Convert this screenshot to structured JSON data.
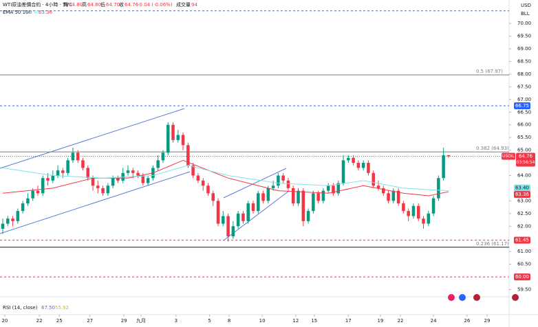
{
  "header": {
    "symbol": "WTI原油差價合約 · 4小時 · TVC",
    "ohlc": [
      {
        "label": "開",
        "value": "64.80"
      },
      {
        "label": "高",
        "value": "64.80"
      },
      {
        "label": "低",
        "value": "64.70"
      },
      {
        "label": "收",
        "value": "64.76"
      }
    ],
    "change": "-0.04 (-0.06%)",
    "volume_label": "成交量",
    "volume": "94"
  },
  "ema_legend": {
    "name": "EMA 50 100"
  },
  "rsi_legend": {
    "name": "RSI (14, close)",
    "values": [
      "67.50",
      "55.92"
    ]
  },
  "chart_data": {
    "type": "candlestick",
    "currency": "USD",
    "unit": "BLL",
    "up_color": "#089981",
    "down_color": "#f23645",
    "xlim": [
      -0.55,
      101.1
    ],
    "ylim": [
      59.27,
      70.6
    ],
    "xticks": [
      {
        "value": 0.4,
        "label": "20"
      },
      {
        "value": 7.3,
        "label": "22"
      },
      {
        "value": 11.3,
        "label": "25"
      },
      {
        "value": 17.4,
        "label": "27"
      },
      {
        "value": 24.2,
        "label": "29"
      },
      {
        "value": 27.6,
        "label": "九月"
      },
      {
        "value": 34.6,
        "label": "3"
      },
      {
        "value": 41.3,
        "label": "5"
      },
      {
        "value": 45.2,
        "label": "8"
      },
      {
        "value": 51.8,
        "label": "10"
      },
      {
        "value": 58.5,
        "label": "12"
      },
      {
        "value": 62.2,
        "label": "15"
      },
      {
        "value": 69.0,
        "label": "17"
      },
      {
        "value": 75.4,
        "label": "19"
      },
      {
        "value": 79.4,
        "label": "22"
      },
      {
        "value": 86.0,
        "label": "24"
      },
      {
        "value": 92.7,
        "label": "26"
      },
      {
        "value": 96.7,
        "label": "29"
      }
    ],
    "yticks": [
      {
        "value": 70,
        "label": "70.00"
      },
      {
        "value": 69.5,
        "label": "69.50"
      },
      {
        "value": 69,
        "label": "69.00"
      },
      {
        "value": 68.5,
        "label": "68.50"
      },
      {
        "value": 68,
        "label": "68.00"
      },
      {
        "value": 67.5,
        "label": "67.50"
      },
      {
        "value": 67,
        "label": "67.00"
      },
      {
        "value": 66.5,
        "label": "66.50"
      },
      {
        "value": 66,
        "label": "66.00"
      },
      {
        "value": 65.5,
        "label": "65.50"
      },
      {
        "value": 65,
        "label": "65.00"
      },
      {
        "value": 64,
        "label": "64.00"
      },
      {
        "value": 63,
        "label": "63.00"
      },
      {
        "value": 62.5,
        "label": "62.50"
      },
      {
        "value": 62,
        "label": "62.00"
      },
      {
        "value": 61,
        "label": "61.00"
      },
      {
        "value": 60.5,
        "label": "60.50"
      },
      {
        "value": 59.5,
        "label": "59.50"
      }
    ],
    "open": [
      61.9,
      62.1,
      62.3,
      62.2,
      62.6,
      62.9,
      63.1,
      63.4,
      63.3,
      63.9,
      63.8,
      64.0,
      64.2,
      64.1,
      64.6,
      64.9,
      64.6,
      64.3,
      63.9,
      63.6,
      63.5,
      63.3,
      63.6,
      63.9,
      63.8,
      64.1,
      64.2,
      64.1,
      64.0,
      63.7,
      63.9,
      64.3,
      64.6,
      64.9,
      66.0,
      65.4,
      65.6,
      65.2,
      64.4,
      64.0,
      63.8,
      63.6,
      63.3,
      63.0,
      62.1,
      62.4,
      61.6,
      62.0,
      62.5,
      62.2,
      62.9,
      62.6,
      63.3,
      63.0,
      63.5,
      63.6,
      64.0,
      63.8,
      63.5,
      62.9,
      63.4,
      62.2,
      62.6,
      63.3,
      63.0,
      63.4,
      63.6,
      63.3,
      63.7,
      64.6,
      64.7,
      64.5,
      64.3,
      64.5,
      64.1,
      63.6,
      63.5,
      63.3,
      63.0,
      63.4,
      62.9,
      62.6,
      62.4,
      62.8,
      62.3,
      62.1,
      62.5,
      63.1,
      63.9,
      64.8
    ],
    "high": [
      62.3,
      62.4,
      62.4,
      62.7,
      63.0,
      63.3,
      63.5,
      63.6,
      64.0,
      64.1,
      64.2,
      64.4,
      64.3,
      64.7,
      65.1,
      65.0,
      64.7,
      64.4,
      64.0,
      63.8,
      63.6,
      63.7,
      64.0,
      64.0,
      64.3,
      64.4,
      64.3,
      64.2,
      64.1,
      64.0,
      64.4,
      64.8,
      65.0,
      66.1,
      66.1,
      65.8,
      65.7,
      65.3,
      64.5,
      64.1,
      63.9,
      63.7,
      63.4,
      63.1,
      62.6,
      62.5,
      62.2,
      62.6,
      62.6,
      63.0,
      63.0,
      63.4,
      63.4,
      63.6,
      63.8,
      64.1,
      64.1,
      63.9,
      63.6,
      63.5,
      63.5,
      62.7,
      63.4,
      63.4,
      63.5,
      63.7,
      63.7,
      63.8,
      64.8,
      64.8,
      64.8,
      64.6,
      64.6,
      64.6,
      64.2,
      63.8,
      63.6,
      63.4,
      63.5,
      63.5,
      63.0,
      62.7,
      62.9,
      62.9,
      62.4,
      62.6,
      63.2,
      64.0,
      65.1,
      64.8
    ],
    "low": [
      61.7,
      62.0,
      62.0,
      62.1,
      62.5,
      62.8,
      63.0,
      63.2,
      63.2,
      63.6,
      63.7,
      63.9,
      63.9,
      64.0,
      64.5,
      64.5,
      64.2,
      63.8,
      63.4,
      63.3,
      63.2,
      63.2,
      63.5,
      63.7,
      63.7,
      64.0,
      63.9,
      63.9,
      63.6,
      63.6,
      63.8,
      64.2,
      64.5,
      64.8,
      65.3,
      65.3,
      65.0,
      64.3,
      63.9,
      63.7,
      63.4,
      63.2,
      62.8,
      62.0,
      62.0,
      61.4,
      61.5,
      61.9,
      62.1,
      62.1,
      62.5,
      62.5,
      62.9,
      62.9,
      63.4,
      63.5,
      63.7,
      63.4,
      62.8,
      62.8,
      62.0,
      62.1,
      62.5,
      62.9,
      62.9,
      63.3,
      63.2,
      63.2,
      63.6,
      64.5,
      64.4,
      64.2,
      64.2,
      64.0,
      63.5,
      63.4,
      63.2,
      62.9,
      62.9,
      62.8,
      62.5,
      62.2,
      62.3,
      62.2,
      61.9,
      62.0,
      62.4,
      63.0,
      63.8,
      64.7
    ],
    "close": [
      62.1,
      62.3,
      62.2,
      62.6,
      62.9,
      63.1,
      63.4,
      63.3,
      63.9,
      63.8,
      64.0,
      64.2,
      64.1,
      64.6,
      64.9,
      64.6,
      64.3,
      63.9,
      63.6,
      63.5,
      63.3,
      63.6,
      63.9,
      63.8,
      64.1,
      64.2,
      64.1,
      64.0,
      63.7,
      63.9,
      64.3,
      64.6,
      64.9,
      66.0,
      65.4,
      65.6,
      65.2,
      64.4,
      64.0,
      63.8,
      63.6,
      63.3,
      63.0,
      62.1,
      62.4,
      61.6,
      62.0,
      62.5,
      62.2,
      62.9,
      62.6,
      63.3,
      63.0,
      63.5,
      63.6,
      64.0,
      63.8,
      63.5,
      62.9,
      63.4,
      62.2,
      62.6,
      63.3,
      63.0,
      63.4,
      63.6,
      63.3,
      63.7,
      64.6,
      64.7,
      64.5,
      64.3,
      64.5,
      64.1,
      63.6,
      63.5,
      63.3,
      63.0,
      63.4,
      62.9,
      62.6,
      62.4,
      62.8,
      62.3,
      62.1,
      62.5,
      63.1,
      63.9,
      64.8,
      64.76
    ],
    "series": [
      {
        "name": "EMA 50",
        "color": "#f23645",
        "x": [
          0,
          10,
          18,
          25,
          30,
          36,
          45,
          55,
          65,
          72,
          80,
          85,
          89
        ],
        "values": [
          63.3,
          63.5,
          63.9,
          63.9,
          64.1,
          64.6,
          63.9,
          63.4,
          63.3,
          63.6,
          63.3,
          63.2,
          63.36
        ]
      },
      {
        "name": "EMA 100",
        "color": "#7fe3e8",
        "x": [
          0,
          10,
          20,
          30,
          37,
          45,
          55,
          65,
          72,
          80,
          89
        ],
        "values": [
          64.3,
          64.0,
          63.9,
          64.0,
          64.4,
          64.0,
          63.7,
          63.6,
          63.8,
          63.5,
          63.4
        ]
      }
    ],
    "levels": [
      {
        "value": 70.5,
        "color": "#2962ff",
        "style": "dashed"
      },
      {
        "value": 67.97,
        "color": "#787b86",
        "style": "solid",
        "label": "0.5 (67.97)"
      },
      {
        "value": 66.75,
        "color": "#2962ff",
        "style": "dashed",
        "tag": "66.75"
      },
      {
        "value": 64.93,
        "color": "#787b86",
        "style": "solid",
        "label": "0.382 (64.93)"
      },
      {
        "value": 61.45,
        "color": "#f23645",
        "style": "dashed",
        "tag": "61.45"
      },
      {
        "value": 61.17,
        "color": "#131722",
        "style": "solid",
        "label": "0.236 (61.17)"
      },
      {
        "value": 60,
        "color": "#f23645",
        "style": "dashed",
        "tag": "60.00"
      }
    ],
    "ema_tags": [
      {
        "value": 63.4,
        "label": "63.40",
        "color": "#7fe3e8"
      },
      {
        "value": 63.36,
        "label": "63.36",
        "color": "#f23645"
      }
    ],
    "price": {
      "symbol": "USOIL",
      "value": 64.76,
      "label": "64.76",
      "countdown": "03:56:54",
      "color": "#f23645"
    }
  }
}
